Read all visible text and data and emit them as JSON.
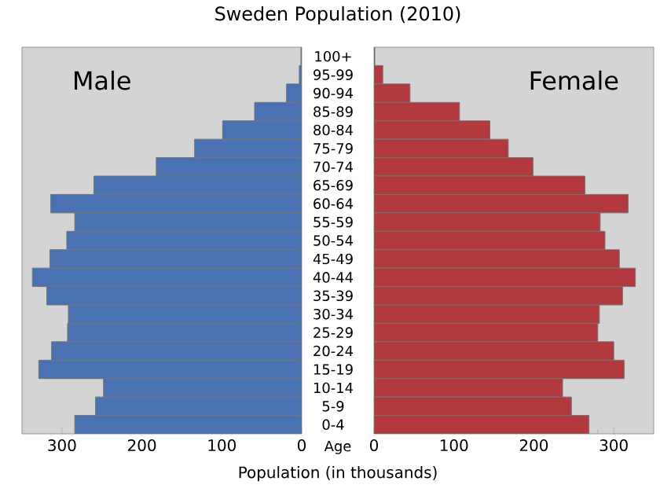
{
  "chart_data": [
    {
      "type": "bar",
      "orientation": "horizontal",
      "title": "Sweden Population (2010)",
      "xlabel": "Population (in thousands)",
      "ylabel": "Age",
      "categories": [
        "100+",
        "95-99",
        "90-94",
        "85-89",
        "80-84",
        "75-79",
        "70-74",
        "65-69",
        "60-64",
        "55-59",
        "50-54",
        "45-49",
        "40-44",
        "35-39",
        "30-34",
        "25-29",
        "20-24",
        "15-19",
        "10-14",
        "5-9",
        "0-4"
      ],
      "series": [
        {
          "name": "Male",
          "color": "#4a72b3",
          "values": [
            1,
            3,
            19,
            59,
            99,
            134,
            182,
            260,
            314,
            284,
            294,
            315,
            337,
            319,
            292,
            293,
            313,
            329,
            248,
            258,
            284
          ]
        }
      ],
      "xlim": [
        350,
        0
      ],
      "xticks": [
        300,
        200,
        100,
        0
      ]
    },
    {
      "type": "bar",
      "orientation": "horizontal",
      "tick_labels": "x",
      "categories": [
        null,
        null,
        null,
        null,
        null,
        null,
        null,
        null,
        null,
        null,
        null,
        null,
        null,
        null,
        null,
        null,
        null,
        null,
        null,
        null,
        null
      ],
      "series": [
        {
          "name": "Female",
          "color": "#b23a3e",
          "values": [
            1,
            11,
            45,
            107,
            145,
            168,
            199,
            264,
            318,
            283,
            289,
            307,
            327,
            311,
            282,
            280,
            300,
            313,
            236,
            247,
            269
          ]
        }
      ],
      "xlim": [
        0,
        350
      ],
      "xticks": [
        0,
        100,
        200,
        300
      ]
    }
  ]
}
